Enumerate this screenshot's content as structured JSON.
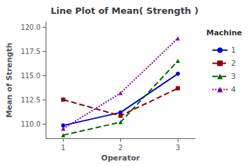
{
  "chart_data": {
    "type": "line",
    "title": "Line Plot of Mean( Strength )",
    "x_label": "Operator",
    "y_label": "Mean of Strength",
    "x": [
      1,
      2,
      3
    ],
    "series": [
      {
        "name": "1",
        "color": "#0000cc",
        "marker": "circle",
        "line_style": "solid",
        "values": [
          109.83,
          111.17,
          115.17
        ]
      },
      {
        "name": "2",
        "color": "#8b0000",
        "marker": "square",
        "line_style": "dashed",
        "values": [
          112.5,
          110.83,
          113.67
        ]
      },
      {
        "name": "3",
        "color": "#006400",
        "marker": "triangle",
        "line_style": "dashed",
        "values": [
          108.83,
          110.17,
          116.5
        ]
      },
      {
        "name": "4",
        "color": "#7b00a0",
        "marker": "triangle",
        "line_style": "dotted",
        "values": [
          109.5,
          113.17,
          118.83
        ]
      }
    ],
    "xlim": [
      0.7,
      3.3
    ],
    "xticks": [
      1,
      2,
      3
    ],
    "ylim": [
      108.5,
      120.5
    ],
    "yticks": [
      {
        "value": 110,
        "label": "110.0"
      },
      112.5,
      {
        "value": 115,
        "label": "115.0"
      },
      117.5,
      {
        "value": 120,
        "label": "120.0"
      }
    ],
    "grid": false,
    "legend": "right",
    "legend_title": "Machine"
  }
}
